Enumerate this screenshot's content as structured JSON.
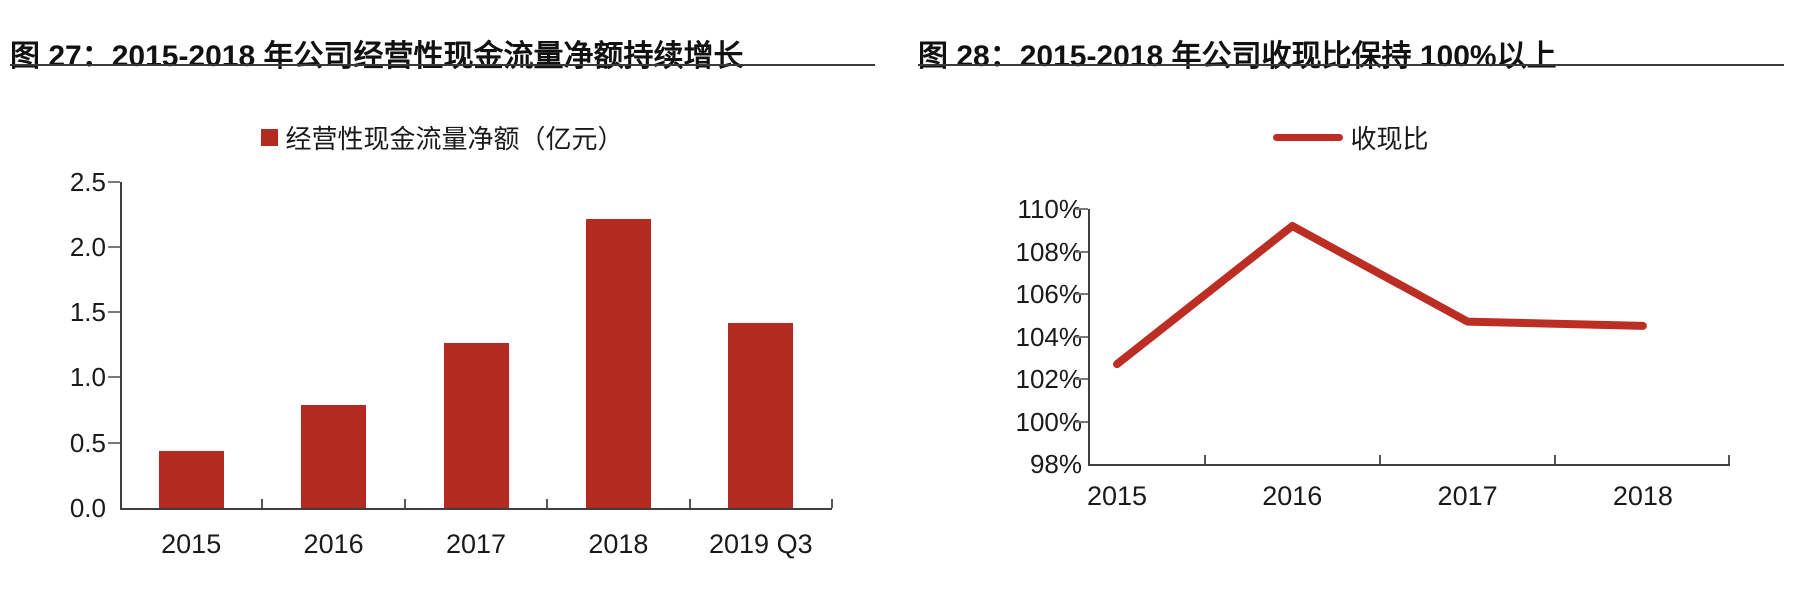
{
  "page": {
    "background": "#ffffff"
  },
  "colors": {
    "accent_red": "#B22A20",
    "line_red": "#BC2E23",
    "title_text": "#111111",
    "divider": "#3a3a3a",
    "axis_line": "#3f3f3f",
    "tick_mark": "#7a7a7a",
    "label_text": "#1a1a1a"
  },
  "chart_data": [
    {
      "type": "bar",
      "title": "图 27：2015-2018 年公司经营性现金流量净额持续增长",
      "legend": "经营性现金流量净额（亿元）",
      "series_name": "经营性现金流量净额",
      "unit": "亿元",
      "categories": [
        "2015",
        "2016",
        "2017",
        "2018",
        "2019 Q3"
      ],
      "values": [
        0.44,
        0.79,
        1.26,
        2.21,
        1.42
      ],
      "ylim": [
        0,
        2.5
      ],
      "yticks": [
        0,
        0.5,
        1,
        1.5,
        2,
        2.5
      ],
      "ytick_labels": [
        "0.0",
        "0.5",
        "1.0",
        "1.5",
        "2.0",
        "2.5"
      ],
      "grid": false,
      "legend_position": "top-center",
      "bar_color": "#B22A20"
    },
    {
      "type": "line",
      "title": "图 28：2015-2018 年公司收现比保持 100%以上",
      "legend": "收现比",
      "series_name": "收现比",
      "unit": "%",
      "categories": [
        "2015",
        "2016",
        "2017",
        "2018"
      ],
      "values": [
        102.7,
        109.2,
        104.7,
        104.5
      ],
      "ylim": [
        98,
        110
      ],
      "yticks": [
        98,
        100,
        102,
        104,
        106,
        108,
        110
      ],
      "ytick_labels": [
        "98%",
        "100%",
        "102%",
        "104%",
        "106%",
        "108%",
        "110%"
      ],
      "grid": false,
      "legend_position": "top-center",
      "line_color": "#BC2E23"
    }
  ]
}
